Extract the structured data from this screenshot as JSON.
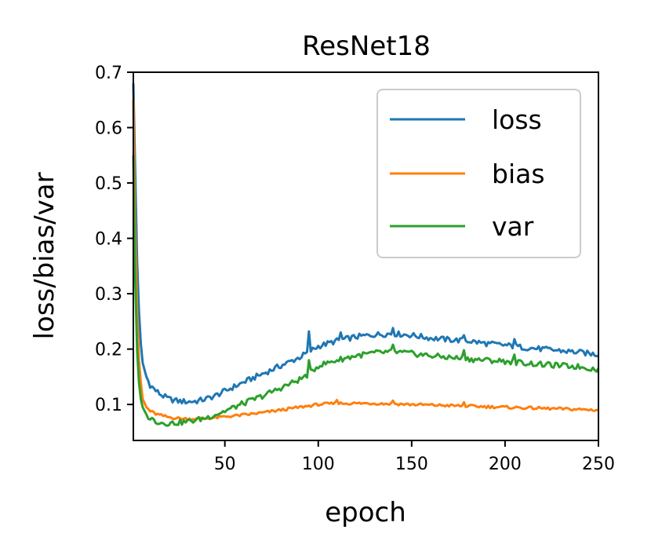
{
  "chart_data": {
    "type": "line",
    "title": "ResNet18",
    "xlabel": "epoch",
    "ylabel": "loss/bias/var",
    "xlim": [
      1,
      250
    ],
    "ylim": [
      0.035,
      0.7
    ],
    "xticks": [
      50,
      100,
      150,
      200,
      250
    ],
    "yticks": [
      0.1,
      0.2,
      0.3,
      0.4,
      0.5,
      0.6,
      0.7
    ],
    "xtick_labels": [
      "50",
      "100",
      "150",
      "200",
      "250"
    ],
    "ytick_labels": [
      "0.1",
      "0.2",
      "0.3",
      "0.4",
      "0.5",
      "0.6",
      "0.7"
    ],
    "legend_position": "top-right",
    "series": [
      {
        "name": "loss",
        "color": "#1f77b4",
        "anchors": [
          [
            1,
            0.68
          ],
          [
            2,
            0.52
          ],
          [
            3,
            0.36
          ],
          [
            4,
            0.27
          ],
          [
            5,
            0.21
          ],
          [
            6,
            0.175
          ],
          [
            8,
            0.15
          ],
          [
            10,
            0.135
          ],
          [
            13,
            0.125
          ],
          [
            16,
            0.117
          ],
          [
            20,
            0.11
          ],
          [
            25,
            0.106
          ],
          [
            30,
            0.105
          ],
          [
            35,
            0.106
          ],
          [
            40,
            0.11
          ],
          [
            45,
            0.116
          ],
          [
            50,
            0.124
          ],
          [
            55,
            0.132
          ],
          [
            60,
            0.14
          ],
          [
            70,
            0.155
          ],
          [
            80,
            0.17
          ],
          [
            90,
            0.185
          ],
          [
            95,
            0.195
          ],
          [
            100,
            0.205
          ],
          [
            110,
            0.215
          ],
          [
            120,
            0.222
          ],
          [
            130,
            0.226
          ],
          [
            140,
            0.228
          ],
          [
            150,
            0.225
          ],
          [
            160,
            0.22
          ],
          [
            170,
            0.217
          ],
          [
            180,
            0.215
          ],
          [
            190,
            0.21
          ],
          [
            200,
            0.207
          ],
          [
            210,
            0.203
          ],
          [
            220,
            0.2
          ],
          [
            230,
            0.197
          ],
          [
            240,
            0.194
          ],
          [
            250,
            0.19
          ]
        ],
        "spikes": [
          [
            95,
            0.232
          ],
          [
            112,
            0.23
          ],
          [
            140,
            0.238
          ],
          [
            178,
            0.225
          ],
          [
            205,
            0.218
          ]
        ],
        "noise": 0.005
      },
      {
        "name": "bias",
        "color": "#ff7f0e",
        "anchors": [
          [
            1,
            0.65
          ],
          [
            2,
            0.42
          ],
          [
            3,
            0.27
          ],
          [
            4,
            0.18
          ],
          [
            5,
            0.14
          ],
          [
            6,
            0.11
          ],
          [
            8,
            0.095
          ],
          [
            10,
            0.088
          ],
          [
            13,
            0.083
          ],
          [
            16,
            0.08
          ],
          [
            20,
            0.077
          ],
          [
            25,
            0.075
          ],
          [
            30,
            0.074
          ],
          [
            35,
            0.074
          ],
          [
            40,
            0.075
          ],
          [
            45,
            0.076
          ],
          [
            50,
            0.078
          ],
          [
            60,
            0.081
          ],
          [
            70,
            0.085
          ],
          [
            80,
            0.09
          ],
          [
            90,
            0.095
          ],
          [
            100,
            0.1
          ],
          [
            110,
            0.102
          ],
          [
            120,
            0.102
          ],
          [
            130,
            0.102
          ],
          [
            140,
            0.101
          ],
          [
            150,
            0.1
          ],
          [
            160,
            0.099
          ],
          [
            170,
            0.098
          ],
          [
            180,
            0.097
          ],
          [
            190,
            0.096
          ],
          [
            200,
            0.095
          ],
          [
            210,
            0.094
          ],
          [
            220,
            0.093
          ],
          [
            230,
            0.092
          ],
          [
            240,
            0.091
          ],
          [
            250,
            0.09
          ]
        ],
        "spikes": [
          [
            110,
            0.108
          ],
          [
            140,
            0.107
          ],
          [
            178,
            0.104
          ]
        ],
        "noise": 0.0025
      },
      {
        "name": "var",
        "color": "#2ca02c",
        "anchors": [
          [
            1,
            0.55
          ],
          [
            2,
            0.33
          ],
          [
            3,
            0.2
          ],
          [
            4,
            0.14
          ],
          [
            5,
            0.11
          ],
          [
            6,
            0.095
          ],
          [
            8,
            0.082
          ],
          [
            10,
            0.075
          ],
          [
            13,
            0.07
          ],
          [
            16,
            0.067
          ],
          [
            20,
            0.066
          ],
          [
            25,
            0.067
          ],
          [
            30,
            0.069
          ],
          [
            35,
            0.072
          ],
          [
            40,
            0.076
          ],
          [
            45,
            0.082
          ],
          [
            50,
            0.088
          ],
          [
            55,
            0.095
          ],
          [
            60,
            0.102
          ],
          [
            70,
            0.115
          ],
          [
            80,
            0.13
          ],
          [
            90,
            0.145
          ],
          [
            95,
            0.155
          ],
          [
            100,
            0.17
          ],
          [
            110,
            0.18
          ],
          [
            120,
            0.188
          ],
          [
            130,
            0.193
          ],
          [
            140,
            0.195
          ],
          [
            150,
            0.192
          ],
          [
            160,
            0.188
          ],
          [
            170,
            0.185
          ],
          [
            180,
            0.182
          ],
          [
            190,
            0.18
          ],
          [
            200,
            0.178
          ],
          [
            210,
            0.175
          ],
          [
            220,
            0.172
          ],
          [
            230,
            0.17
          ],
          [
            240,
            0.168
          ],
          [
            250,
            0.163
          ]
        ],
        "spikes": [
          [
            95,
            0.18
          ],
          [
            140,
            0.208
          ],
          [
            178,
            0.198
          ],
          [
            205,
            0.19
          ]
        ],
        "noise": 0.005
      }
    ]
  }
}
